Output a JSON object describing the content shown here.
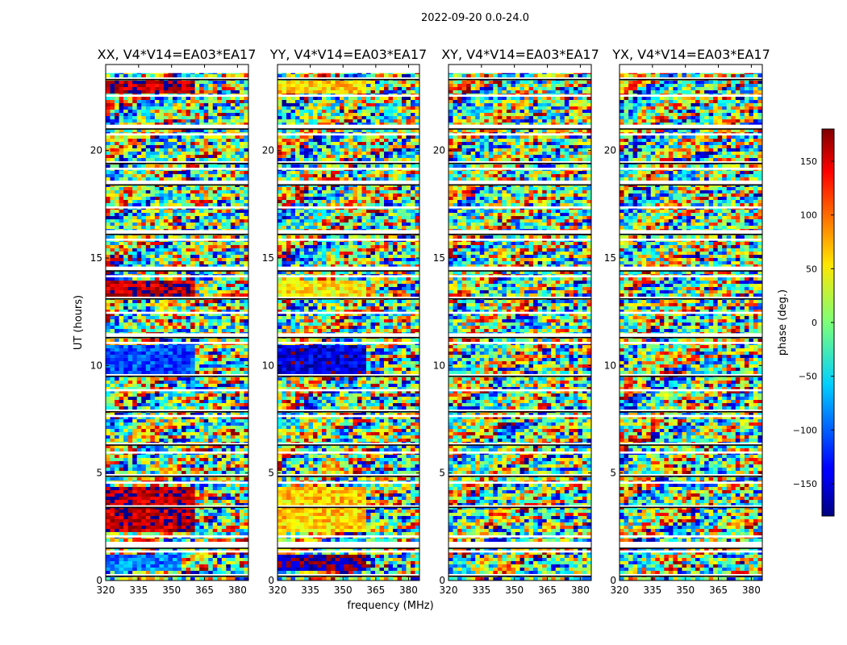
{
  "figure": {
    "suptitle": "2022-09-20 0.0-24.0",
    "xlabel": "frequency (MHz)",
    "ylabel": "UT (hours)"
  },
  "chart_data": {
    "type": "heatmap",
    "x_range": [
      320,
      385
    ],
    "y_range": [
      0,
      24
    ],
    "x_ticks": [
      320,
      335,
      350,
      365,
      380
    ],
    "y_ticks": [
      0,
      5,
      10,
      15,
      20
    ],
    "x_tick_labels": [
      "320",
      "335",
      "350",
      "365",
      "380"
    ],
    "y_tick_labels": [
      "0",
      "5",
      "10",
      "15",
      "20"
    ],
    "colormap": "jet",
    "panels": [
      {
        "title": "XX, V4*V14=EA03*EA17",
        "pol": "XX"
      },
      {
        "title": "YY, V4*V14=EA03*EA17",
        "pol": "YY"
      },
      {
        "title": "XY, V4*V14=EA03*EA17",
        "pol": "XY"
      },
      {
        "title": "YX, V4*V14=EA03*EA17",
        "pol": "YX"
      }
    ],
    "colorbar": {
      "label": "phase (deg.)",
      "range": [
        -180,
        180
      ],
      "ticks": [
        150,
        100,
        50,
        0,
        -50,
        -100,
        -150
      ],
      "tick_labels": [
        "150",
        "100",
        "50",
        "0",
        "−50",
        "−100",
        "−150"
      ]
    },
    "flag_bands_hours": [
      [
        0.2,
        0.3
      ],
      [
        1.3,
        1.4
      ],
      [
        1.5,
        1.8
      ],
      [
        2.0,
        2.1
      ],
      [
        3.4,
        3.5
      ],
      [
        4.5,
        4.6
      ],
      [
        4.85,
        4.95
      ],
      [
        5.9,
        6.0
      ],
      [
        6.3,
        6.4
      ],
      [
        7.6,
        7.7
      ],
      [
        7.85,
        7.95
      ],
      [
        8.8,
        8.9
      ],
      [
        9.5,
        9.6
      ],
      [
        11.0,
        11.1
      ],
      [
        11.3,
        11.5
      ],
      [
        12.4,
        12.5
      ],
      [
        13.1,
        13.2
      ],
      [
        14.1,
        14.2
      ],
      [
        14.4,
        14.6
      ],
      [
        15.8,
        15.9
      ],
      [
        16.1,
        16.3
      ],
      [
        17.3,
        17.4
      ],
      [
        18.4,
        18.6
      ],
      [
        19.1,
        19.2
      ],
      [
        19.4,
        19.5
      ],
      [
        20.7,
        20.8
      ],
      [
        21.0,
        21.2
      ],
      [
        22.5,
        22.6
      ],
      [
        23.3,
        23.4
      ],
      [
        23.6,
        24.0
      ]
    ],
    "coherent_regions": [
      {
        "pol": "XX",
        "t0": 0.4,
        "t1": 1.2,
        "f0": 320,
        "f1": 355,
        "phase": -90
      },
      {
        "pol": "XX",
        "t0": 2.2,
        "t1": 4.4,
        "f0": 320,
        "f1": 361,
        "phase": 160
      },
      {
        "pol": "XX",
        "t0": 9.6,
        "t1": 11.0,
        "f0": 320,
        "f1": 361,
        "phase": -110
      },
      {
        "pol": "XX",
        "t0": 13.2,
        "t1": 14.0,
        "f0": 320,
        "f1": 361,
        "phase": 160
      },
      {
        "pol": "XX",
        "t0": 22.6,
        "t1": 23.2,
        "f0": 320,
        "f1": 361,
        "phase": 160
      },
      {
        "pol": "YY",
        "t0": 0.4,
        "t1": 1.2,
        "f0": 320,
        "f1": 361,
        "phase": -170
      },
      {
        "pol": "YY",
        "t0": 2.2,
        "t1": 4.4,
        "f0": 320,
        "f1": 361,
        "phase": 60
      },
      {
        "pol": "YY",
        "t0": 9.6,
        "t1": 11.0,
        "f0": 320,
        "f1": 361,
        "phase": -150
      },
      {
        "pol": "YY",
        "t0": 13.2,
        "t1": 14.0,
        "f0": 320,
        "f1": 361,
        "phase": 50
      },
      {
        "pol": "YY",
        "t0": 22.6,
        "t1": 23.2,
        "f0": 320,
        "f1": 361,
        "phase": 60
      }
    ]
  }
}
